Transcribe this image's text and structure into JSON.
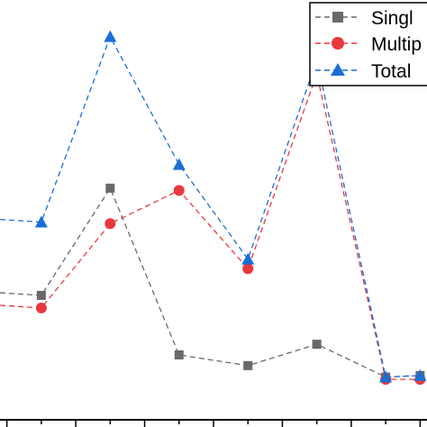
{
  "chart_data": {
    "type": "line",
    "x": [
      1,
      2,
      3,
      4,
      5,
      6,
      7,
      8,
      9,
      10,
      11,
      12,
      13
    ],
    "series": [
      {
        "name": "Single",
        "color": "#696969",
        "marker": "square",
        "values": [
          null,
          32.6,
          null,
          60.7,
          null,
          17.0,
          null,
          14.2,
          null,
          19.8,
          null,
          11.2,
          11.6
        ]
      },
      {
        "name": "Multiple",
        "color": "#e8383d",
        "marker": "circle",
        "values": [
          null,
          29.3,
          null,
          51.4,
          null,
          60.1,
          null,
          39.6,
          null,
          90.6,
          null,
          10.6,
          10.6
        ]
      },
      {
        "name": "Total",
        "color": "#1a6fd4",
        "marker": "triangle",
        "values": [
          null,
          51.8,
          null,
          100.4,
          null,
          66.9,
          null,
          42.1,
          null,
          94.3,
          null,
          11.2,
          11.6
        ]
      }
    ],
    "partial_first_points": [
      {
        "series": "Single",
        "x": 0.8,
        "y": 33.3
      },
      {
        "series": "Multiple",
        "x": 0.8,
        "y": 30.0
      },
      {
        "series": "Total",
        "x": 0.8,
        "y": 52.5
      }
    ],
    "xlim": [
      0.8,
      13.2
    ],
    "ylim": [
      0,
      110
    ],
    "grid": false,
    "legend_position": "top-right",
    "line_style": "dashed"
  },
  "legend": {
    "items": [
      {
        "label": "Singl",
        "series": "Single"
      },
      {
        "label": "Multip",
        "series": "Multiple"
      },
      {
        "label": "Total",
        "series": "Total"
      }
    ]
  }
}
